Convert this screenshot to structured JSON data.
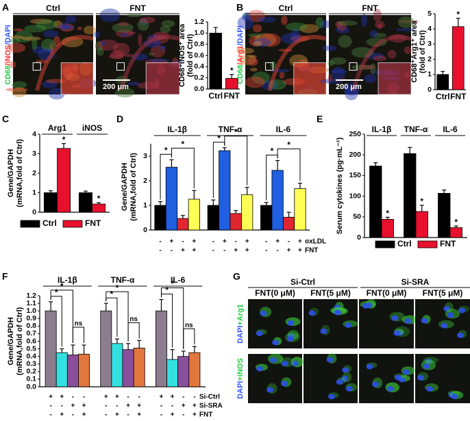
{
  "panel_letters": [
    "A",
    "B",
    "C",
    "D",
    "E",
    "F",
    "G"
  ],
  "images": {
    "A": {
      "conditions": [
        "Ctrl",
        "FNT"
      ],
      "stain": [
        "CD68",
        "/iNOS",
        "/DAPI"
      ],
      "scale_bar": "200 μm"
    },
    "B": {
      "conditions": [
        "Ctrl",
        "FNT"
      ],
      "stain": [
        "CD68",
        "/Arg1",
        "/DAPI"
      ],
      "scale_bar": "200 μm"
    },
    "G": {
      "groups": [
        "Si-Ctrl",
        "Si-SRA"
      ],
      "columns": [
        "FNT(0 μM)",
        "FNT(5 μM)",
        "FNT(0 μM)",
        "FNT(5 μM)"
      ],
      "rows": [
        [
          "DAPI",
          "+Arg1"
        ],
        [
          "DAPI",
          "+iNOS"
        ]
      ]
    }
  },
  "chart_data": [
    {
      "type": "bar",
      "y_label": [
        "CD68⁺iNOS⁺ area",
        "(fold of Ctrl)"
      ],
      "categories": [
        "Ctrl",
        "FNT"
      ],
      "values": [
        1.0,
        0.19
      ],
      "errors": [
        0.1,
        0.07
      ],
      "colors": [
        "#000000",
        "#e8112d"
      ],
      "significance": [
        null,
        "*"
      ],
      "ylim": [
        0,
        1.2
      ],
      "yticks": [
        {
          "value": 0,
          "label": "0.0"
        },
        0.2,
        0.4,
        0.6,
        0.8,
        {
          "value": 1,
          "label": "1.0"
        },
        1.2
      ]
    },
    {
      "type": "bar",
      "y_label": [
        "CD68⁺Arg1⁺ area",
        "(fold of Ctrl)"
      ],
      "categories": [
        "Ctrl",
        "FNT"
      ],
      "values": [
        1.0,
        4.15
      ],
      "errors": [
        0.2,
        0.55
      ],
      "colors": [
        "#000000",
        "#e8112d"
      ],
      "significance": [
        null,
        "*"
      ],
      "ylim": [
        0,
        5
      ],
      "yticks": [
        0,
        1,
        2,
        3,
        4,
        5
      ]
    },
    {
      "type": "bar",
      "y_label": [
        "Gene/GAPDH",
        "(mRNA,fold of Ctrl)"
      ],
      "categories": [
        "Arg1",
        "iNOS"
      ],
      "series": [
        {
          "name": "Ctrl",
          "color": "#000000",
          "values": [
            1.0,
            1.0
          ],
          "errors": [
            0.1,
            0.08
          ],
          "significance": [
            null,
            null
          ]
        },
        {
          "name": "FNT",
          "color": "#e8112d",
          "values": [
            3.27,
            0.42
          ],
          "errors": [
            0.25,
            0.07
          ],
          "significance": [
            "*",
            "*"
          ]
        }
      ],
      "ylim": [
        0,
        4
      ],
      "yticks": [
        0,
        1,
        2,
        3,
        4
      ]
    },
    {
      "type": "bar",
      "y_label": [
        "Gene/GAPDH",
        "(mRNA,fold of Ctrl)"
      ],
      "categories": [
        "IL-1β",
        "TNF-α",
        "IL-6"
      ],
      "series": [
        {
          "color": "#000000",
          "values": [
            1.0,
            1.0,
            1.0
          ],
          "errors": [
            0.15,
            0.22,
            0.12
          ]
        },
        {
          "color": "#1f5fe0",
          "values": [
            2.55,
            3.22,
            2.42
          ],
          "errors": [
            0.3,
            0.12,
            0.4
          ]
        },
        {
          "color": "#e0262f",
          "values": [
            0.47,
            0.67,
            0.52
          ],
          "errors": [
            0.12,
            0.12,
            0.2
          ]
        },
        {
          "color": "#ffff55",
          "values": [
            1.25,
            1.43,
            1.68
          ],
          "errors": [
            0.35,
            0.3,
            0.22
          ]
        }
      ],
      "brackets": [
        {
          "from": 0,
          "to": 1,
          "label": "*"
        },
        {
          "from": 1,
          "to": 3,
          "label": "*"
        }
      ],
      "treatments": [
        {
          "name": "oxLDL",
          "signs": [
            "-",
            "+",
            "-",
            "+"
          ]
        },
        {
          "name": "FNT",
          "signs": [
            "-",
            "-",
            "+",
            "+"
          ]
        }
      ],
      "ylim": [
        0,
        3.5
      ],
      "yticks": [
        0,
        1,
        2,
        3
      ]
    },
    {
      "type": "bar",
      "y_label": [
        "Serum cytokines (pg·mL⁻¹)"
      ],
      "categories": [
        "IL-1β",
        "TNF-α",
        "IL-6"
      ],
      "series": [
        {
          "name": "Ctrl",
          "color": "#000000",
          "values": [
            173,
            203,
            107
          ],
          "errors": [
            8,
            15,
            8
          ],
          "significance": [
            null,
            null,
            null
          ]
        },
        {
          "name": "FNT",
          "color": "#e8112d",
          "values": [
            44,
            63,
            24
          ],
          "errors": [
            5,
            15,
            4
          ],
          "significance": [
            "*",
            "*",
            "*"
          ]
        }
      ],
      "ylim": [
        0,
        250
      ],
      "yticks": [
        0,
        50,
        100,
        150,
        200,
        250
      ]
    },
    {
      "type": "bar",
      "y_label": [
        "Gene/GAPDH",
        "(mRNA,fold of Ctrl)"
      ],
      "categories": [
        "IL-1β",
        "TNF-α",
        "IL-6"
      ],
      "series": [
        {
          "color": "#8b7d8e",
          "values": [
            1.0,
            1.0,
            1.0
          ],
          "errors": [
            0.12,
            0.1,
            0.15
          ]
        },
        {
          "color": "#33e0e0",
          "values": [
            0.45,
            0.57,
            0.36
          ],
          "errors": [
            0.05,
            0.06,
            0.13
          ]
        },
        {
          "color": "#8a4f9b",
          "values": [
            0.42,
            0.49,
            0.4
          ],
          "errors": [
            0.13,
            0.08,
            0.07
          ]
        },
        {
          "color": "#e2763f",
          "values": [
            0.43,
            0.51,
            0.45
          ],
          "errors": [
            0.12,
            0.1,
            0.08
          ]
        }
      ],
      "brackets": [
        {
          "from": 0,
          "to": 1,
          "label": "*"
        },
        {
          "from": 0,
          "to": 2,
          "label": "*"
        },
        {
          "from": 2,
          "to": 3,
          "label": "ns"
        }
      ],
      "treatments": [
        {
          "name": "Si-Ctrl",
          "signs": [
            "+",
            "+",
            "-",
            "-"
          ]
        },
        {
          "name": "Si-SRA",
          "signs": [
            "-",
            "-",
            "+",
            "+"
          ]
        },
        {
          "name": "FNT",
          "signs": [
            "-",
            "+",
            "-",
            "+"
          ]
        }
      ],
      "ylim": [
        0,
        1.2
      ],
      "yticks": [
        {
          "value": 0,
          "label": "0.0"
        },
        0.1,
        0.2,
        0.3,
        0.4,
        0.5,
        0.6,
        0.7,
        0.8,
        0.9,
        {
          "value": 1,
          "label": "1.0"
        },
        1.1,
        1.2
      ]
    }
  ]
}
